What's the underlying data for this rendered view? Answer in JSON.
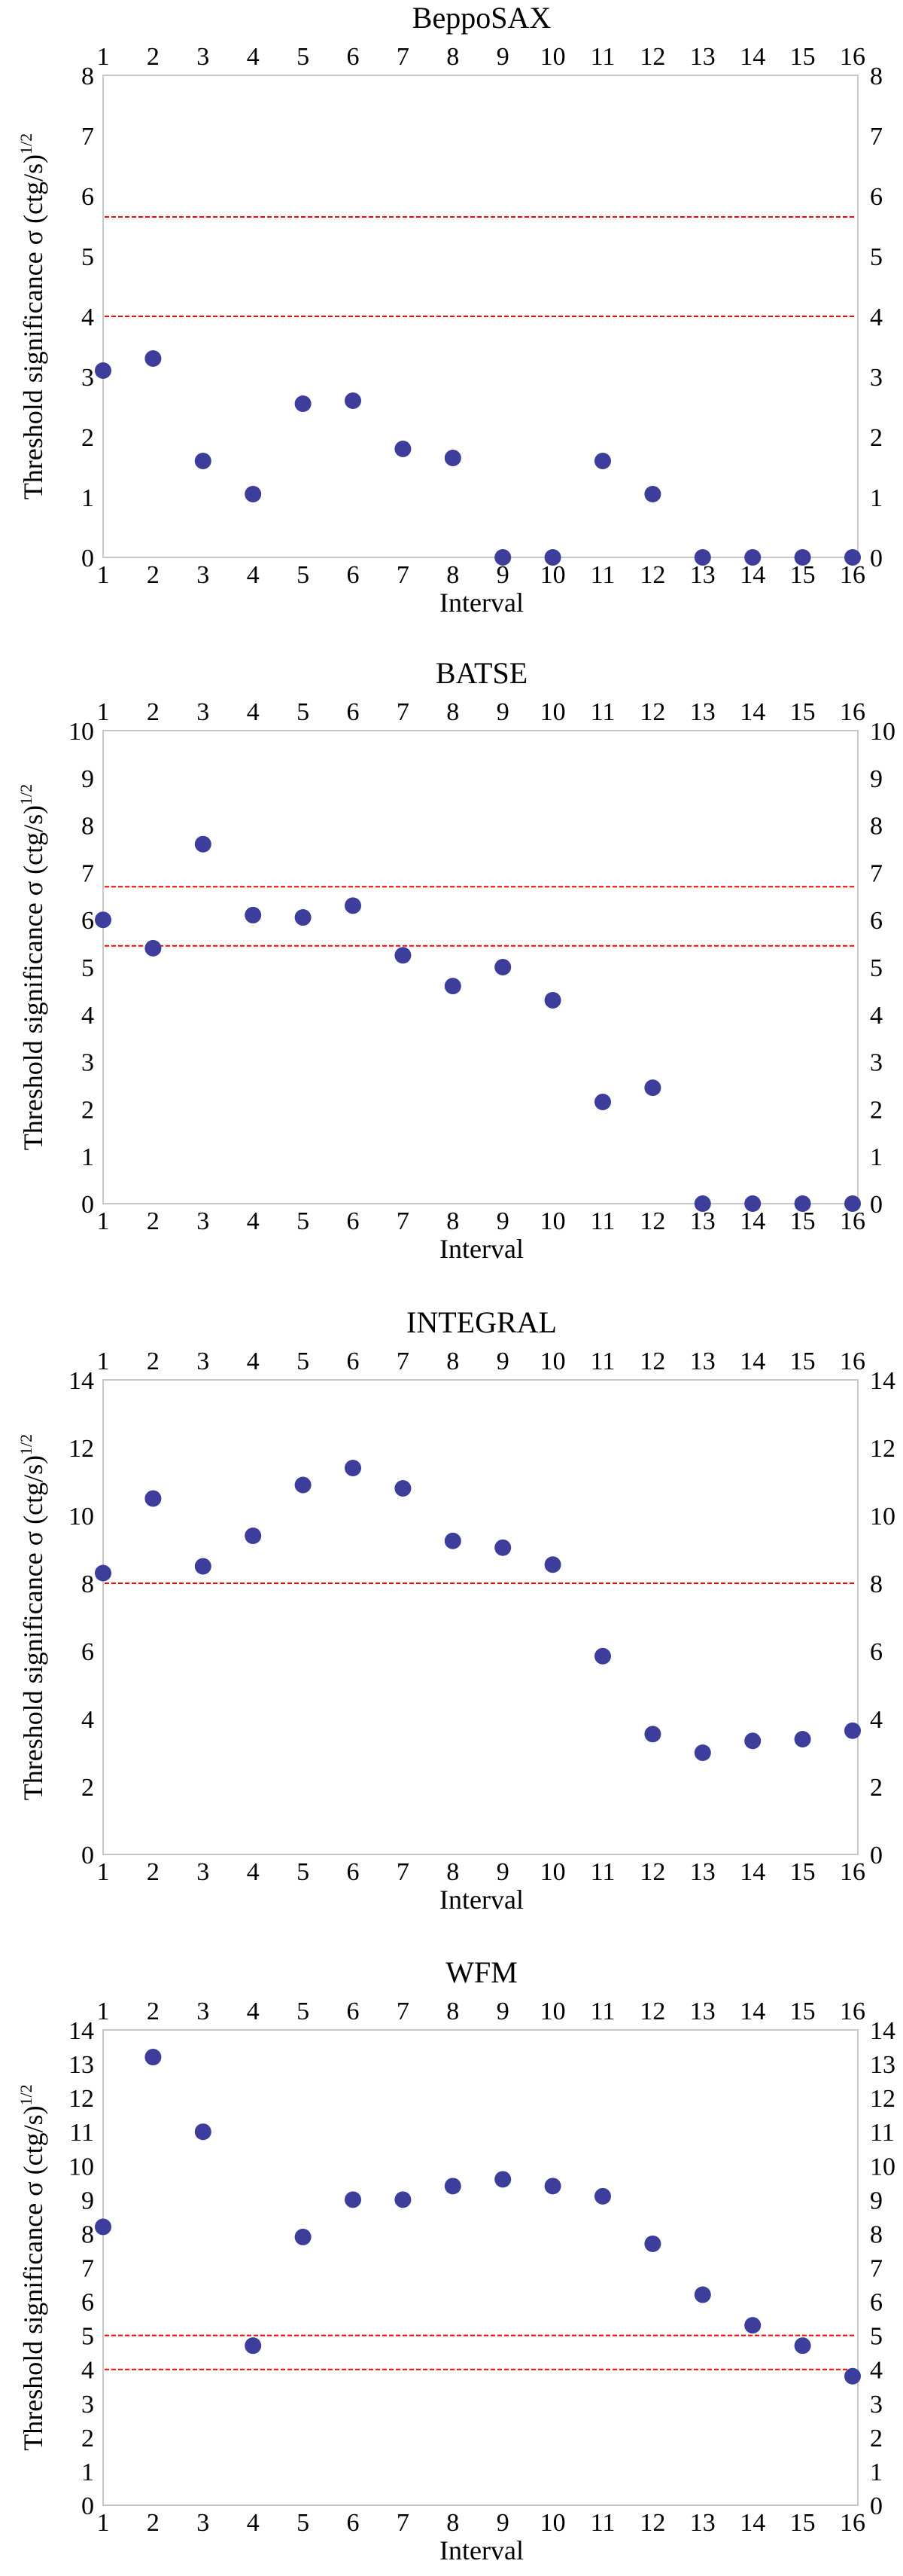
{
  "figure": {
    "ylabel": "Threshold significance σ (ctg/s)",
    "ylabel_sup": "1/2",
    "xlabel": "Interval"
  },
  "chart_data": [
    {
      "type": "scatter",
      "title": "BeppoSAX",
      "xlabel": "Interval",
      "ylabel": "Threshold significance σ (ctg/s)^(1/2)",
      "x": [
        1,
        2,
        3,
        4,
        5,
        6,
        7,
        8,
        9,
        10,
        11,
        12,
        13,
        14,
        15,
        16
      ],
      "values": [
        3.1,
        3.3,
        1.6,
        1.05,
        2.55,
        2.6,
        1.8,
        1.65,
        0,
        0,
        1.6,
        1.05,
        0,
        0,
        0,
        0
      ],
      "thresholds": [
        5.65,
        4.0
      ],
      "ylim": [
        0,
        8
      ],
      "yticks": [
        0,
        1,
        2,
        3,
        4,
        5,
        6,
        7,
        8
      ],
      "xticks": [
        1,
        2,
        3,
        4,
        5,
        6,
        7,
        8,
        9,
        10,
        11,
        12,
        13,
        14,
        15,
        16
      ]
    },
    {
      "type": "scatter",
      "title": "BATSE",
      "xlabel": "Interval",
      "ylabel": "Threshold significance σ (ctg/s)^(1/2)",
      "x": [
        1,
        2,
        3,
        4,
        5,
        6,
        7,
        8,
        9,
        10,
        11,
        12,
        13,
        14,
        15,
        16
      ],
      "values": [
        6.0,
        5.4,
        7.6,
        6.1,
        6.05,
        6.3,
        5.25,
        4.6,
        5.0,
        4.3,
        2.15,
        2.45,
        0,
        0,
        0,
        0
      ],
      "thresholds": [
        6.7,
        5.45
      ],
      "ylim": [
        0,
        10
      ],
      "yticks": [
        0,
        1,
        2,
        3,
        4,
        5,
        6,
        7,
        8,
        9,
        10
      ],
      "xticks": [
        1,
        2,
        3,
        4,
        5,
        6,
        7,
        8,
        9,
        10,
        11,
        12,
        13,
        14,
        15,
        16
      ]
    },
    {
      "type": "scatter",
      "title": "INTEGRAL",
      "xlabel": "Interval",
      "ylabel": "Threshold significance σ (ctg/s)^(1/2)",
      "x": [
        1,
        2,
        3,
        4,
        5,
        6,
        7,
        8,
        9,
        10,
        11,
        12,
        13,
        14,
        15,
        16
      ],
      "values": [
        8.3,
        10.5,
        8.5,
        9.4,
        10.9,
        11.4,
        10.8,
        9.25,
        9.05,
        8.55,
        5.85,
        3.55,
        3.0,
        3.35,
        3.4,
        3.65
      ],
      "thresholds": [
        8.0
      ],
      "ylim": [
        0,
        14
      ],
      "yticks": [
        0,
        2,
        4,
        6,
        8,
        10,
        12,
        14
      ],
      "xticks": [
        1,
        2,
        3,
        4,
        5,
        6,
        7,
        8,
        9,
        10,
        11,
        12,
        13,
        14,
        15,
        16
      ]
    },
    {
      "type": "scatter",
      "title": "WFM",
      "xlabel": "Interval",
      "ylabel": "Threshold significance σ (ctg/s)^(1/2)",
      "x": [
        1,
        2,
        3,
        4,
        5,
        6,
        7,
        8,
        9,
        10,
        11,
        12,
        13,
        14,
        15,
        16
      ],
      "values": [
        8.2,
        13.2,
        11.0,
        4.7,
        7.9,
        9.0,
        9.0,
        9.4,
        9.6,
        9.4,
        9.1,
        7.7,
        6.2,
        5.3,
        4.7,
        3.8
      ],
      "thresholds": [
        5.0,
        4.0
      ],
      "ylim": [
        0,
        14
      ],
      "yticks": [
        0,
        1,
        2,
        3,
        4,
        5,
        6,
        7,
        8,
        9,
        10,
        11,
        12,
        13,
        14
      ],
      "xticks": [
        1,
        2,
        3,
        4,
        5,
        6,
        7,
        8,
        9,
        10,
        11,
        12,
        13,
        14,
        15,
        16
      ]
    }
  ]
}
